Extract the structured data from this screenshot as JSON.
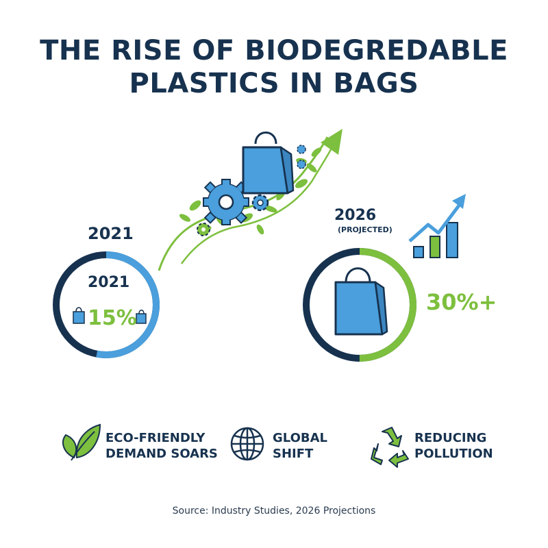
{
  "title": {
    "line1": "THE RISE OF BIODEGREDABLE",
    "line2": "PLASTICS IN BAGS"
  },
  "start": {
    "year_label": "2021",
    "ring_year": "2021",
    "value_label": "15%",
    "share_percent": 15
  },
  "end": {
    "year_label": "2026",
    "sub_label": "(PROJECTED)",
    "value_label": "30%+",
    "share_percent": 30
  },
  "features": [
    {
      "icon": "leaf-icon",
      "line1": "ECO-FRIENDLY",
      "line2": "DEMAND SOARS"
    },
    {
      "icon": "globe-icon",
      "line1": "GLOBAL",
      "line2": "SHIFT"
    },
    {
      "icon": "recycle-icon",
      "line1": "REDUCING",
      "line2": "POLLUTION"
    }
  ],
  "source": "Source: Industry Studies, 2026 Projections",
  "colors": {
    "navy": "#17324f",
    "blue": "#4a9fdc",
    "green": "#7dbf3e"
  }
}
